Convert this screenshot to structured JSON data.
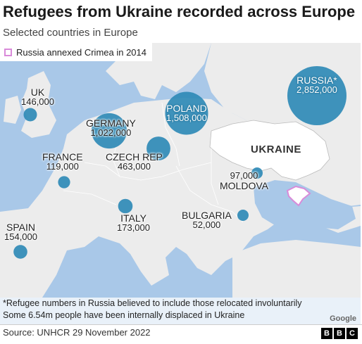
{
  "title": "Refugees from Ukraine recorded across Europe",
  "subtitle": "Selected countries in Europe",
  "legend": {
    "label": "Russia annexed Crimea in 2014",
    "swatch_color": "#d98ad9"
  },
  "colors": {
    "bubble": "#2f8ab6",
    "land": "#ececec",
    "sea": "#a9c8e8",
    "ukraine": "#ffffff",
    "crimea": "#d98ad9"
  },
  "countries": [
    {
      "name": "UK",
      "refugees": "146,000",
      "value": 146000
    },
    {
      "name": "GERMANY",
      "refugees": "1,022,000",
      "value": 1022000
    },
    {
      "name": "POLAND",
      "refugees": "1,508,000",
      "value": 1508000
    },
    {
      "name": "RUSSIA*",
      "refugees": "2,852,000",
      "value": 2852000
    },
    {
      "name": "FRANCE",
      "refugees": "119,000",
      "value": 119000
    },
    {
      "name": "CZECH REP",
      "refugees": "463,000",
      "value": 463000
    },
    {
      "name": "MOLDOVA",
      "refugees": "97,000",
      "value": 97000
    },
    {
      "name": "ITALY",
      "refugees": "173,000",
      "value": 173000
    },
    {
      "name": "BULGARIA",
      "refugees": "52,000",
      "value": 52000
    },
    {
      "name": "SPAIN",
      "refugees": "154,000",
      "value": 154000
    }
  ],
  "ukraine_label": "UKRAINE",
  "footnotes": [
    "*Refugee numbers in Russia believed to include those relocated involuntarily",
    "Some 6.54m people have been internally displaced in Ukraine"
  ],
  "map_credit": "Google",
  "source": "Source: UNHCR 29 November 2022",
  "logo": [
    "B",
    "B",
    "C"
  ]
}
